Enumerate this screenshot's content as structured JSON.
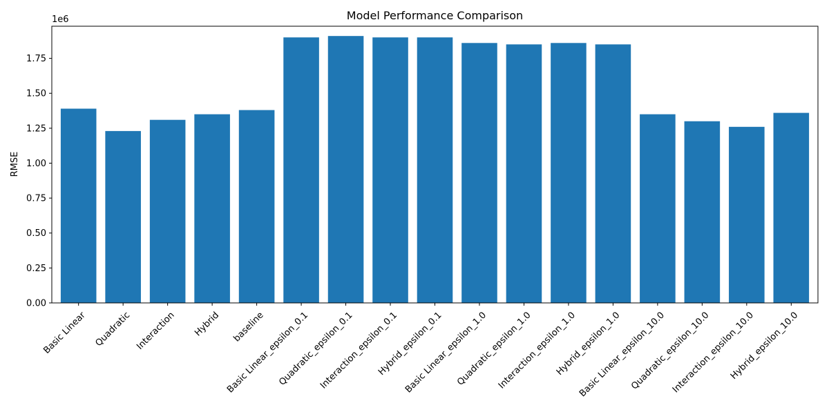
{
  "chart_data": {
    "type": "bar",
    "title": "Model Performance Comparison",
    "xlabel": "",
    "ylabel": "RMSE",
    "scale_label": "1e6",
    "bar_color": "#1f77b4",
    "ylim": [
      0,
      1.98
    ],
    "yticks": [
      0.0,
      0.25,
      0.5,
      0.75,
      1.0,
      1.25,
      1.5,
      1.75
    ],
    "ytick_labels": [
      "0.00",
      "0.25",
      "0.50",
      "0.75",
      "1.00",
      "1.25",
      "1.50",
      "1.75"
    ],
    "grid": false,
    "categories": [
      "Basic Linear",
      "Quadratic",
      "Interaction",
      "Hybrid",
      "baseline",
      "Basic Linear_epsilon_0.1",
      "Quadratic_epsilon_0.1",
      "Interaction_epsilon_0.1",
      "Hybrid_epsilon_0.1",
      "Basic Linear_epsilon_1.0",
      "Quadratic_epsilon_1.0",
      "Interaction_epsilon_1.0",
      "Hybrid_epsilon_1.0",
      "Basic Linear_epsilon_10.0",
      "Quadratic_epsilon_10.0",
      "Interaction_epsilon_10.0",
      "Hybrid_epsilon_10.0"
    ],
    "values": [
      1.39,
      1.23,
      1.31,
      1.35,
      1.38,
      1.9,
      1.91,
      1.9,
      1.9,
      1.86,
      1.85,
      1.86,
      1.85,
      1.35,
      1.3,
      1.26,
      1.36
    ]
  }
}
